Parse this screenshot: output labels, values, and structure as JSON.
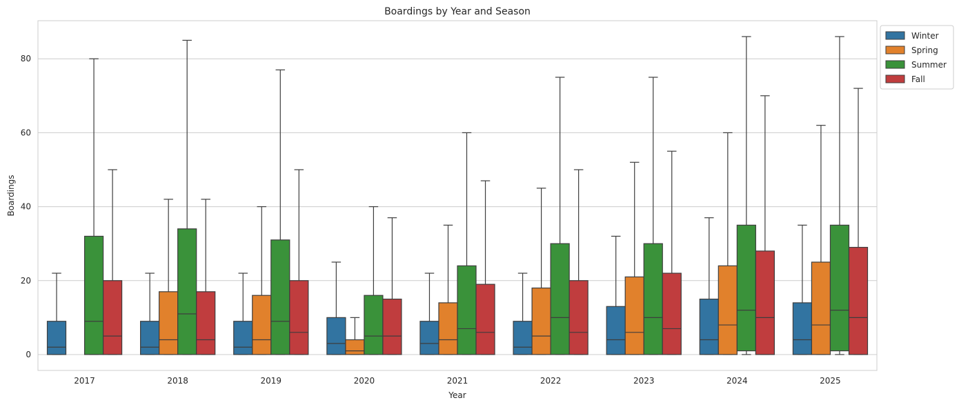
{
  "chart_data": {
    "type": "boxplot",
    "title": "Boardings by Year and Season",
    "xlabel": "Year",
    "ylabel": "Boardings",
    "ylim": [
      -4.3,
      90.3
    ],
    "yticks": [
      0,
      20,
      40,
      60,
      80
    ],
    "grid": "horizontal",
    "legend_position": "outside-top-right",
    "categories": [
      "2017",
      "2018",
      "2019",
      "2020",
      "2021",
      "2022",
      "2023",
      "2024",
      "2025"
    ],
    "series": [
      {
        "name": "Winter",
        "color": "#3274a1",
        "boxes": [
          {
            "whislo": 0,
            "q1": 0,
            "med": 2,
            "q3": 9,
            "whishi": 22
          },
          {
            "whislo": 0,
            "q1": 0,
            "med": 2,
            "q3": 9,
            "whishi": 22
          },
          {
            "whislo": 0,
            "q1": 0,
            "med": 2,
            "q3": 9,
            "whishi": 22
          },
          {
            "whislo": 0,
            "q1": 0,
            "med": 3,
            "q3": 10,
            "whishi": 25
          },
          {
            "whislo": 0,
            "q1": 0,
            "med": 3,
            "q3": 9,
            "whishi": 22
          },
          {
            "whislo": 0,
            "q1": 0,
            "med": 2,
            "q3": 9,
            "whishi": 22
          },
          {
            "whislo": 0,
            "q1": 0,
            "med": 4,
            "q3": 13,
            "whishi": 32
          },
          {
            "whislo": 0,
            "q1": 0,
            "med": 4,
            "q3": 15,
            "whishi": 37
          },
          {
            "whislo": 0,
            "q1": 0,
            "med": 4,
            "q3": 14,
            "whishi": 35
          }
        ]
      },
      {
        "name": "Spring",
        "color": "#e1812c",
        "boxes": [
          null,
          {
            "whislo": 0,
            "q1": 0,
            "med": 4,
            "q3": 17,
            "whishi": 42
          },
          {
            "whislo": 0,
            "q1": 0,
            "med": 4,
            "q3": 16,
            "whishi": 40
          },
          {
            "whislo": 0,
            "q1": 0,
            "med": 1,
            "q3": 4,
            "whishi": 10
          },
          {
            "whislo": 0,
            "q1": 0,
            "med": 4,
            "q3": 14,
            "whishi": 35
          },
          {
            "whislo": 0,
            "q1": 0,
            "med": 5,
            "q3": 18,
            "whishi": 45
          },
          {
            "whislo": 0,
            "q1": 0,
            "med": 6,
            "q3": 21,
            "whishi": 52
          },
          {
            "whislo": 0,
            "q1": 0,
            "med": 8,
            "q3": 24,
            "whishi": 60
          },
          {
            "whislo": 0,
            "q1": 0,
            "med": 8,
            "q3": 25,
            "whishi": 62
          }
        ]
      },
      {
        "name": "Summer",
        "color": "#3a923a",
        "boxes": [
          {
            "whislo": 0,
            "q1": 0,
            "med": 9,
            "q3": 32,
            "whishi": 80
          },
          {
            "whislo": 0,
            "q1": 0,
            "med": 11,
            "q3": 34,
            "whishi": 85
          },
          {
            "whislo": 0,
            "q1": 0,
            "med": 9,
            "q3": 31,
            "whishi": 77
          },
          {
            "whislo": 0,
            "q1": 0,
            "med": 5,
            "q3": 16,
            "whishi": 40
          },
          {
            "whislo": 0,
            "q1": 0,
            "med": 7,
            "q3": 24,
            "whishi": 60
          },
          {
            "whislo": 0,
            "q1": 0,
            "med": 10,
            "q3": 30,
            "whishi": 75
          },
          {
            "whislo": 0,
            "q1": 0,
            "med": 10,
            "q3": 30,
            "whishi": 75
          },
          {
            "whislo": 0,
            "q1": 1,
            "med": 12,
            "q3": 35,
            "whishi": 86
          },
          {
            "whislo": 0,
            "q1": 1,
            "med": 12,
            "q3": 35,
            "whishi": 86
          }
        ]
      },
      {
        "name": "Fall",
        "color": "#c03d3e",
        "boxes": [
          {
            "whislo": 0,
            "q1": 0,
            "med": 5,
            "q3": 20,
            "whishi": 50
          },
          {
            "whislo": 0,
            "q1": 0,
            "med": 4,
            "q3": 17,
            "whishi": 42
          },
          {
            "whislo": 0,
            "q1": 0,
            "med": 6,
            "q3": 20,
            "whishi": 50
          },
          {
            "whislo": 0,
            "q1": 0,
            "med": 5,
            "q3": 15,
            "whishi": 37
          },
          {
            "whislo": 0,
            "q1": 0,
            "med": 6,
            "q3": 19,
            "whishi": 47
          },
          {
            "whislo": 0,
            "q1": 0,
            "med": 6,
            "q3": 20,
            "whishi": 50
          },
          {
            "whislo": 0,
            "q1": 0,
            "med": 7,
            "q3": 22,
            "whishi": 55
          },
          {
            "whislo": 0,
            "q1": 0,
            "med": 10,
            "q3": 28,
            "whishi": 70
          },
          {
            "whislo": 0,
            "q1": 0,
            "med": 10,
            "q3": 29,
            "whishi": 72
          }
        ]
      }
    ]
  }
}
